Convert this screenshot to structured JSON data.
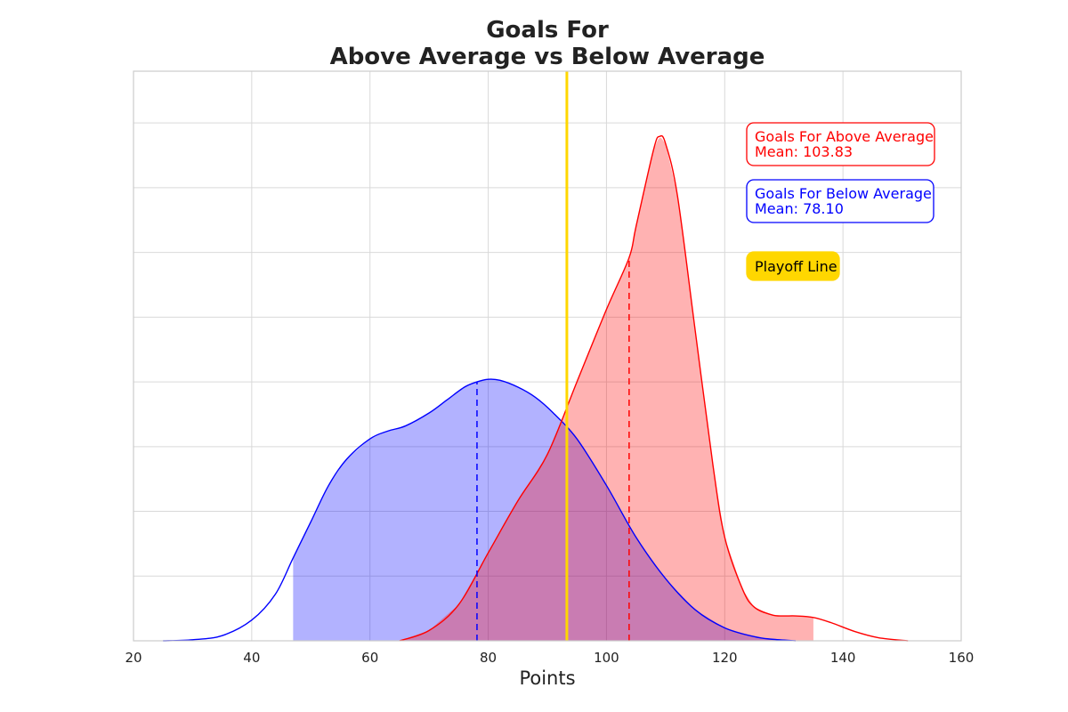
{
  "chart_data": {
    "type": "area",
    "title": "Goals For",
    "subtitle": "Above Average vs Below Average",
    "xlabel": "Points",
    "ylabel": "",
    "xlim": [
      20,
      160
    ],
    "ylim": [
      0,
      1.1
    ],
    "xticks": [
      20,
      40,
      60,
      80,
      100,
      120,
      140,
      160
    ],
    "xtick_labels": [
      "20",
      "40",
      "60",
      "80",
      "100",
      "120",
      "140",
      "160"
    ],
    "grid": true,
    "series": [
      {
        "name": "Goals For Above Average",
        "color": "#ff0000",
        "fill_color": "#ffb3b3",
        "fill_range": [
          65,
          135
        ],
        "mean": 103.83,
        "mean_label": "Mean: 103.83",
        "x": [
          65,
          70,
          75,
          80,
          85,
          90,
          95,
          100,
          103.83,
          105,
          108,
          109,
          110,
          112,
          115,
          118,
          120,
          123,
          125,
          128,
          130,
          132,
          135,
          138,
          142,
          146,
          151
        ],
        "y": [
          0.0,
          0.02,
          0.07,
          0.17,
          0.27,
          0.36,
          0.5,
          0.64,
          0.74,
          0.8,
          0.95,
          0.974,
          0.96,
          0.86,
          0.6,
          0.34,
          0.2,
          0.1,
          0.065,
          0.05,
          0.048,
          0.048,
          0.045,
          0.035,
          0.018,
          0.006,
          0.0
        ]
      },
      {
        "name": "Goals For Below Average",
        "color": "#0000ff",
        "fill_color": "#b3b3ff",
        "fill_range": [
          47,
          135
        ],
        "mean": 78.1,
        "mean_label": "Mean: 78.10",
        "x": [
          25,
          30,
          35,
          40,
          44,
          47,
          50,
          53,
          56,
          60,
          63,
          66,
          70,
          73,
          76,
          78.1,
          80,
          82,
          85,
          88,
          91,
          95,
          100,
          105,
          110,
          115,
          120,
          125,
          128,
          132
        ],
        "y": [
          0.0,
          0.002,
          0.01,
          0.04,
          0.09,
          0.16,
          0.23,
          0.3,
          0.35,
          0.39,
          0.405,
          0.415,
          0.44,
          0.465,
          0.49,
          0.5,
          0.505,
          0.503,
          0.49,
          0.47,
          0.44,
          0.39,
          0.3,
          0.2,
          0.12,
          0.06,
          0.025,
          0.008,
          0.003,
          0.0
        ]
      }
    ],
    "vertical_lines": [
      {
        "name": "Playoff Line",
        "x": 93.3,
        "color": "#ffd700"
      }
    ],
    "legend": [
      {
        "label": "Goals For Above Average",
        "sublabel": "Mean: 103.83",
        "color": "#ff0000",
        "style": "outlined"
      },
      {
        "label": "Goals For Below Average",
        "sublabel": "Mean: 78.10",
        "color": "#0000ff",
        "style": "outlined"
      },
      {
        "label": "Playoff Line",
        "color": "#ffd700",
        "style": "filled"
      }
    ],
    "legend_position": "top-right"
  }
}
